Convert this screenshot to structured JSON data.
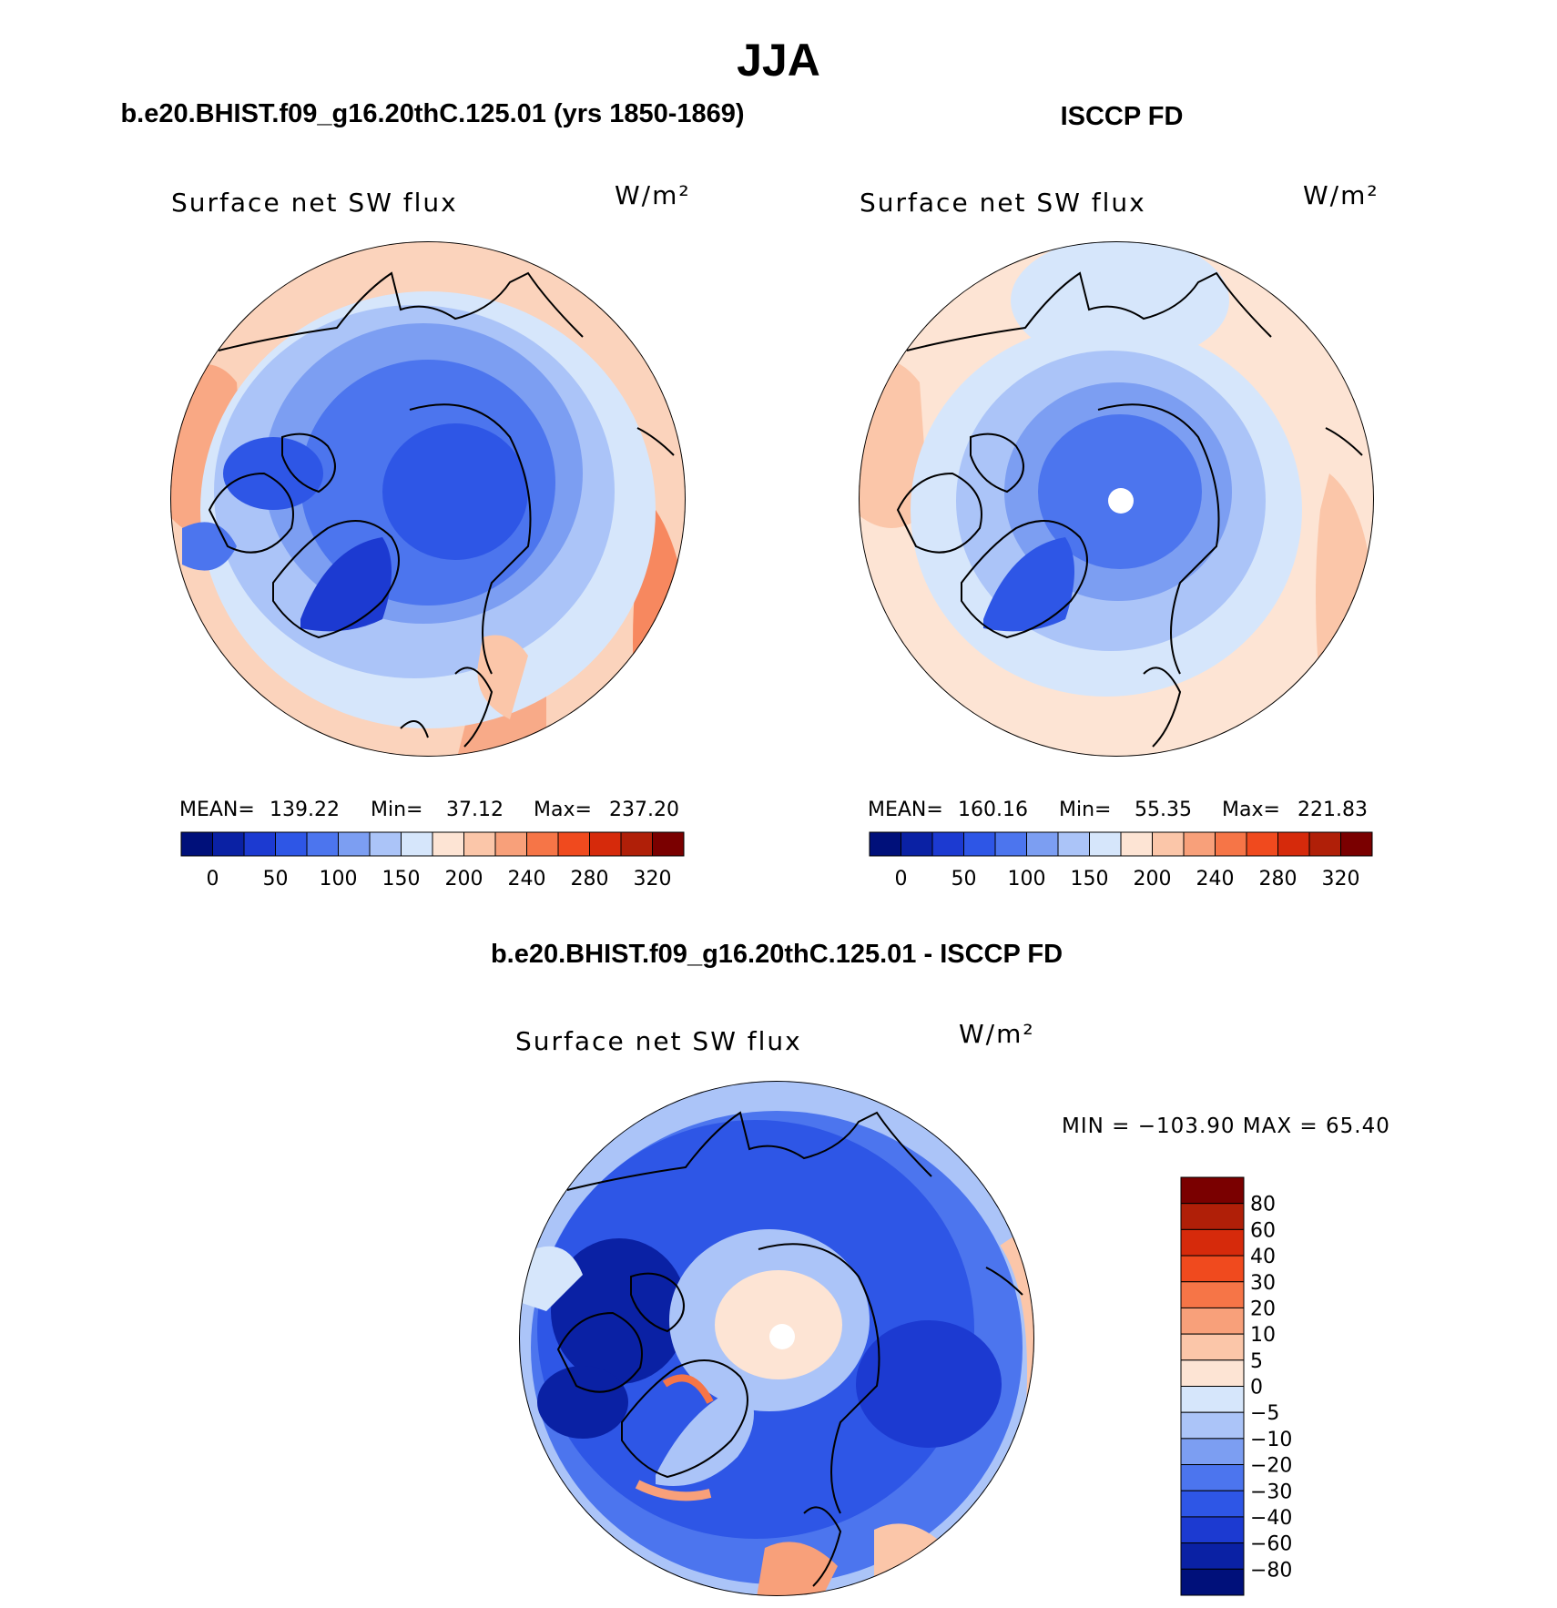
{
  "page": {
    "title": "JJA",
    "panel_left_title": "b.e20.BHIST.f09_g16.20thC.125.01 (yrs 1850-1869)",
    "panel_right_title": "ISCCP FD",
    "panel_bottom_title": "b.e20.BHIST.f09_g16.20thC.125.01 - ISCCP FD"
  },
  "chart_data": [
    {
      "type": "heatmap",
      "projection": "north-polar-stereographic",
      "title": "Surface net SW flux",
      "units": "W/m²",
      "stats": {
        "mean_label": "MEAN=",
        "mean": "139.22",
        "min_label": "Min=",
        "min": "37.12",
        "max_label": "Max=",
        "max": "237.20"
      },
      "colorbar": {
        "orientation": "horizontal",
        "colors": [
          "#00107a",
          "#0a21a4",
          "#1c3ad1",
          "#2e56e6",
          "#4c75ee",
          "#7c9ef2",
          "#abc4f8",
          "#d6e6fb",
          "#fde4d4",
          "#fbc6a9",
          "#f8a07a",
          "#f67547",
          "#f04a1e",
          "#d62a0b",
          "#b01f08",
          "#7a0000"
        ],
        "tick_labels": [
          "0",
          "50",
          "100",
          "150",
          "200",
          "240",
          "280",
          "320"
        ]
      }
    },
    {
      "type": "heatmap",
      "projection": "north-polar-stereographic",
      "title": "Surface net SW flux",
      "units": "W/m²",
      "stats": {
        "mean_label": "MEAN=",
        "mean": "160.16",
        "min_label": "Min=",
        "min": "55.35",
        "max_label": "Max=",
        "max": "221.83"
      },
      "colorbar": {
        "orientation": "horizontal",
        "colors": [
          "#00107a",
          "#0a21a4",
          "#1c3ad1",
          "#2e56e6",
          "#4c75ee",
          "#7c9ef2",
          "#abc4f8",
          "#d6e6fb",
          "#fde4d4",
          "#fbc6a9",
          "#f8a07a",
          "#f67547",
          "#f04a1e",
          "#d62a0b",
          "#b01f08",
          "#7a0000"
        ],
        "tick_labels": [
          "0",
          "50",
          "100",
          "150",
          "200",
          "240",
          "280",
          "320"
        ]
      }
    },
    {
      "type": "heatmap",
      "projection": "north-polar-stereographic",
      "title": "Surface net SW flux",
      "units": "W/m²",
      "stats": {
        "text": "MIN = −103.90 MAX =   65.40"
      },
      "colorbar": {
        "orientation": "vertical",
        "colors": [
          "#7a0000",
          "#b01f08",
          "#d62a0b",
          "#f04a1e",
          "#f67547",
          "#f8a07a",
          "#fbc6a9",
          "#fde4d4",
          "#d6e6fb",
          "#abc4f8",
          "#7c9ef2",
          "#4c75ee",
          "#2e56e6",
          "#1c3ad1",
          "#0a21a4",
          "#00107a"
        ],
        "tick_labels": [
          "80",
          "60",
          "40",
          "30",
          "20",
          "10",
          "5",
          "0",
          "−5",
          "−10",
          "−20",
          "−30",
          "−40",
          "−60",
          "−80"
        ]
      }
    }
  ]
}
